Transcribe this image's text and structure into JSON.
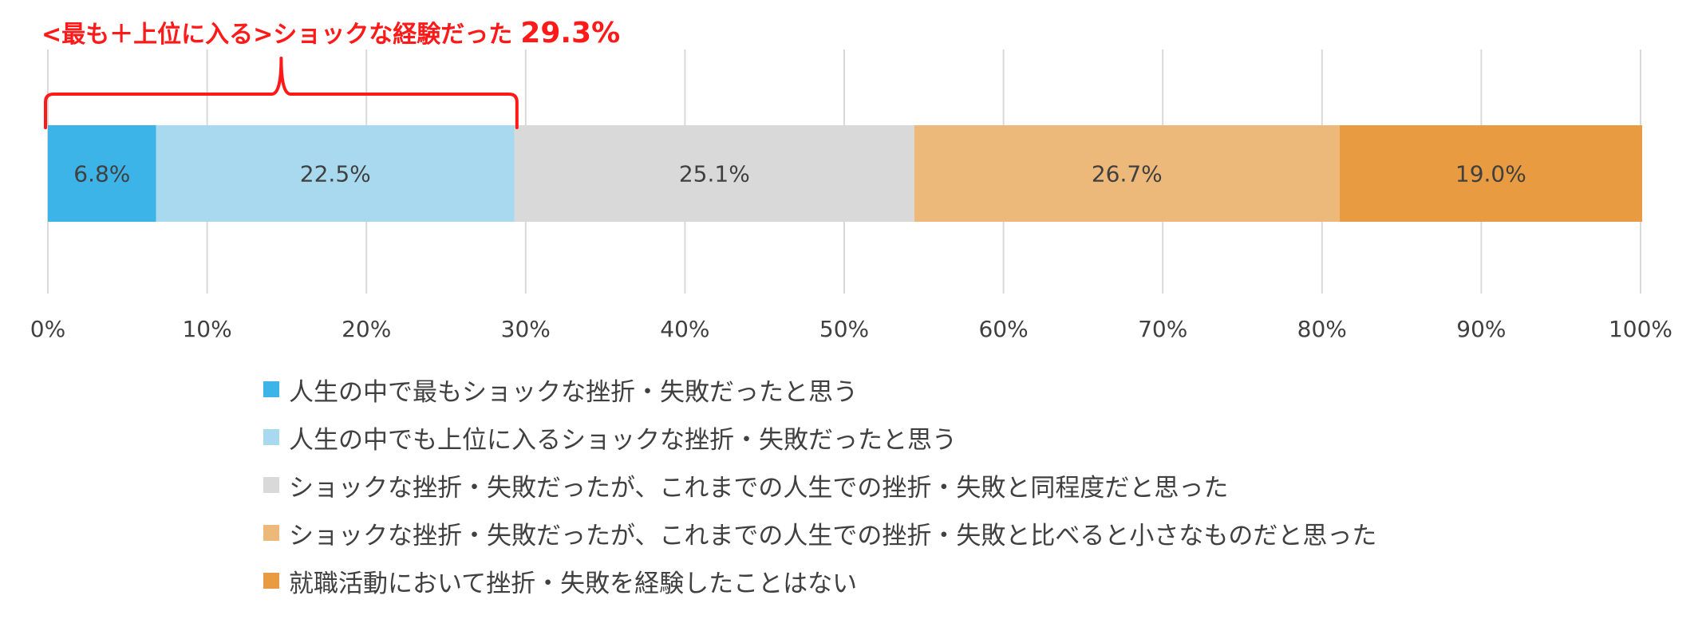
{
  "annotation": {
    "text": "<最も＋上位に入る>ショックな経験だった",
    "value": "29.3%",
    "color": "#ff1a1a"
  },
  "chart_data": {
    "type": "bar",
    "orientation": "horizontal",
    "stacked": true,
    "xlim": [
      0,
      100
    ],
    "x_ticks": [
      "0%",
      "10%",
      "20%",
      "30%",
      "40%",
      "50%",
      "60%",
      "70%",
      "80%",
      "90%",
      "100%"
    ],
    "grid": true,
    "legend_position": "bottom",
    "series": [
      {
        "name": "人生の中で最もショックな挫折・失敗だったと思う",
        "value": 6.8,
        "label": "6.8%",
        "color": "#3db4e8"
      },
      {
        "name": "人生の中でも上位に入るショックな挫折・失敗だったと思う",
        "value": 22.5,
        "label": "22.5%",
        "color": "#a9d9ee"
      },
      {
        "name": "ショックな挫折・失敗だったが、これまでの人生での挫折・失敗と同程度だと思った",
        "value": 25.1,
        "label": "25.1%",
        "color": "#d9d9d9"
      },
      {
        "name": "ショックな挫折・失敗だったが、これまでの人生での挫折・失敗と比べると小さなものだと思った",
        "value": 26.7,
        "label": "26.7%",
        "color": "#ecb97a"
      },
      {
        "name": "就職活動において挫折・失敗を経験したことはない",
        "value": 19.0,
        "label": "19.0%",
        "color": "#e99b41"
      }
    ]
  }
}
